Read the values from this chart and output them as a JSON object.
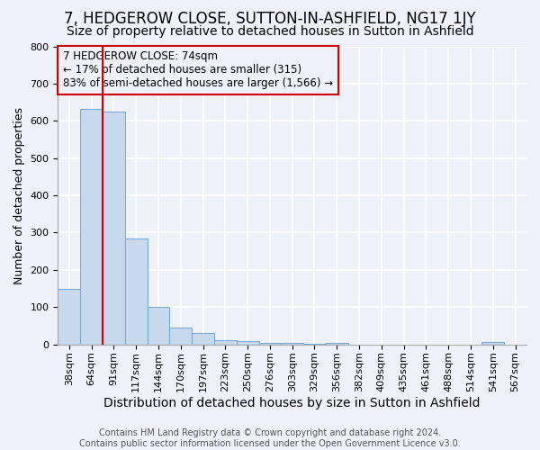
{
  "title": "7, HEDGEROW CLOSE, SUTTON-IN-ASHFIELD, NG17 1JY",
  "subtitle": "Size of property relative to detached houses in Sutton in Ashfield",
  "xlabel": "Distribution of detached houses by size in Sutton in Ashfield",
  "ylabel": "Number of detached properties",
  "footnote": "Contains HM Land Registry data © Crown copyright and database right 2024.\nContains public sector information licensed under the Open Government Licence v3.0.",
  "categories": [
    "38sqm",
    "64sqm",
    "91sqm",
    "117sqm",
    "144sqm",
    "170sqm",
    "197sqm",
    "223sqm",
    "250sqm",
    "276sqm",
    "303sqm",
    "329sqm",
    "356sqm",
    "382sqm",
    "409sqm",
    "435sqm",
    "461sqm",
    "488sqm",
    "514sqm",
    "541sqm",
    "567sqm"
  ],
  "values": [
    148,
    632,
    625,
    285,
    100,
    46,
    30,
    12,
    8,
    4,
    3,
    2,
    3,
    0,
    0,
    0,
    0,
    0,
    0,
    7,
    0
  ],
  "bar_color": "#c8d9ee",
  "bar_edge_color": "#7baad4",
  "annotation_box_text": "7 HEDGEROW CLOSE: 74sqm\n← 17% of detached houses are smaller (315)\n83% of semi-detached houses are larger (1,566) →",
  "annotation_box_color": "#cc0000",
  "vline_x": 1.5,
  "vline_color": "#cc0000",
  "ylim": [
    0,
    800
  ],
  "yticks": [
    0,
    100,
    200,
    300,
    400,
    500,
    600,
    700,
    800
  ],
  "bg_color": "#eef2f8",
  "grid_color": "#ffffff",
  "title_fontsize": 12,
  "subtitle_fontsize": 10,
  "ylabel_fontsize": 9,
  "xlabel_fontsize": 10,
  "tick_fontsize": 8,
  "footnote_fontsize": 7
}
